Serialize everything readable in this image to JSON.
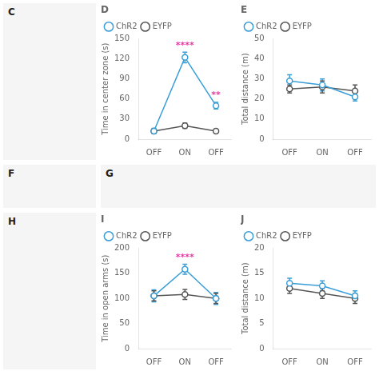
{
  "chart_data": [
    {
      "type": "image",
      "title": "C",
      "color": "#f5f5f5"
    },
    {
      "type": "line",
      "title": "D",
      "ylabel": "Time in center zone (s)",
      "categories": [
        "OFF",
        "ON",
        "OFF"
      ],
      "series": [
        {
          "name": "ChR2",
          "color": "#3a9fd8",
          "marker": "circle",
          "values": [
            12,
            122,
            50
          ],
          "errors": [
            4,
            8,
            5
          ]
        },
        {
          "name": "EYFP",
          "color": "#555555",
          "marker": "circle",
          "values": [
            12,
            20,
            12
          ],
          "errors": [
            3,
            4,
            3
          ]
        }
      ],
      "ylim": [
        0,
        150
      ],
      "yticks": [
        0,
        30,
        60,
        90,
        120,
        150
      ],
      "annotations": [
        {
          "text": "****",
          "x": 1,
          "series": "ChR2",
          "color": "#e040a0"
        },
        {
          "text": "**",
          "x": 2,
          "series": "ChR2",
          "color": "#e040a0"
        }
      ],
      "grid": false,
      "legend": "top"
    },
    {
      "type": "line",
      "title": "E",
      "ylabel": "Total distance (m)",
      "categories": [
        "OFF",
        "ON",
        "OFF"
      ],
      "series": [
        {
          "name": "ChR2",
          "color": "#3a9fd8",
          "marker": "circle",
          "values": [
            29,
            27,
            21
          ],
          "errors": [
            3,
            3,
            2
          ]
        },
        {
          "name": "EYFP",
          "color": "#555555",
          "marker": "circle",
          "values": [
            25,
            26,
            24
          ],
          "errors": [
            2,
            3,
            3
          ]
        }
      ],
      "ylim": [
        0,
        50
      ],
      "yticks": [
        0,
        10,
        20,
        30,
        40,
        50
      ],
      "grid": false,
      "legend": "top"
    },
    {
      "type": "image",
      "title": "F",
      "color": "#f5f5f5"
    },
    {
      "type": "image",
      "title": "G",
      "color": "#f5f5f5"
    },
    {
      "type": "image",
      "title": "H",
      "color": "#f5f5f5"
    },
    {
      "type": "line",
      "title": "I",
      "ylabel": "Time in open arms (s)",
      "categories": [
        "OFF",
        "ON",
        "OFF"
      ],
      "series": [
        {
          "name": "ChR2",
          "color": "#3a9fd8",
          "marker": "circle",
          "values": [
            105,
            158,
            100
          ],
          "errors": [
            12,
            10,
            12
          ]
        },
        {
          "name": "EYFP",
          "color": "#555555",
          "marker": "circle",
          "values": [
            105,
            108,
            100
          ],
          "errors": [
            10,
            10,
            10
          ]
        }
      ],
      "ylim": [
        0,
        200
      ],
      "yticks": [
        0,
        50,
        100,
        150,
        200
      ],
      "annotations": [
        {
          "text": "****",
          "x": 1,
          "series": "ChR2",
          "color": "#e040a0"
        }
      ],
      "grid": false,
      "legend": "top"
    },
    {
      "type": "line",
      "title": "J",
      "ylabel": "Total distance (m)",
      "categories": [
        "OFF",
        "ON",
        "OFF"
      ],
      "series": [
        {
          "name": "ChR2",
          "color": "#3a9fd8",
          "marker": "circle",
          "values": [
            13,
            12.5,
            10.5
          ],
          "errors": [
            1,
            1,
            1
          ]
        },
        {
          "name": "EYFP",
          "color": "#555555",
          "marker": "circle",
          "values": [
            12,
            11,
            10
          ],
          "errors": [
            1,
            1,
            1
          ]
        }
      ],
      "ylim": [
        0,
        20
      ],
      "yticks": [
        0,
        5,
        10,
        15,
        20
      ],
      "grid": false,
      "legend": "top"
    }
  ]
}
